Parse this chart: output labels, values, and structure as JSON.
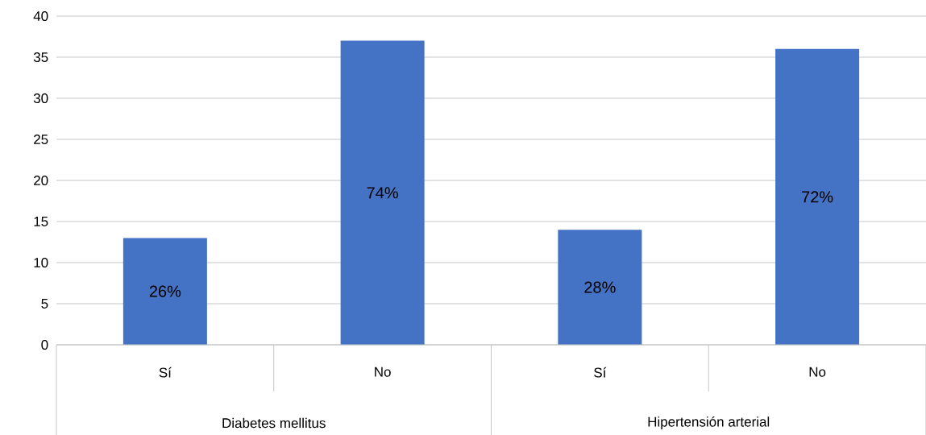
{
  "chart_data": {
    "type": "bar",
    "categories": [
      "Sí",
      "No",
      "Sí",
      "No"
    ],
    "values": [
      13,
      37,
      14,
      36
    ],
    "color": "#4472c4",
    "ylim": [
      0,
      40
    ],
    "yticks": [
      0,
      5,
      10,
      15,
      20,
      25,
      30,
      35,
      40
    ],
    "grid": "y",
    "annotations": [
      "26%",
      "74%",
      "28%",
      "72%",
      "Diabetes mellitus",
      "Hipertensión arterial"
    ]
  }
}
